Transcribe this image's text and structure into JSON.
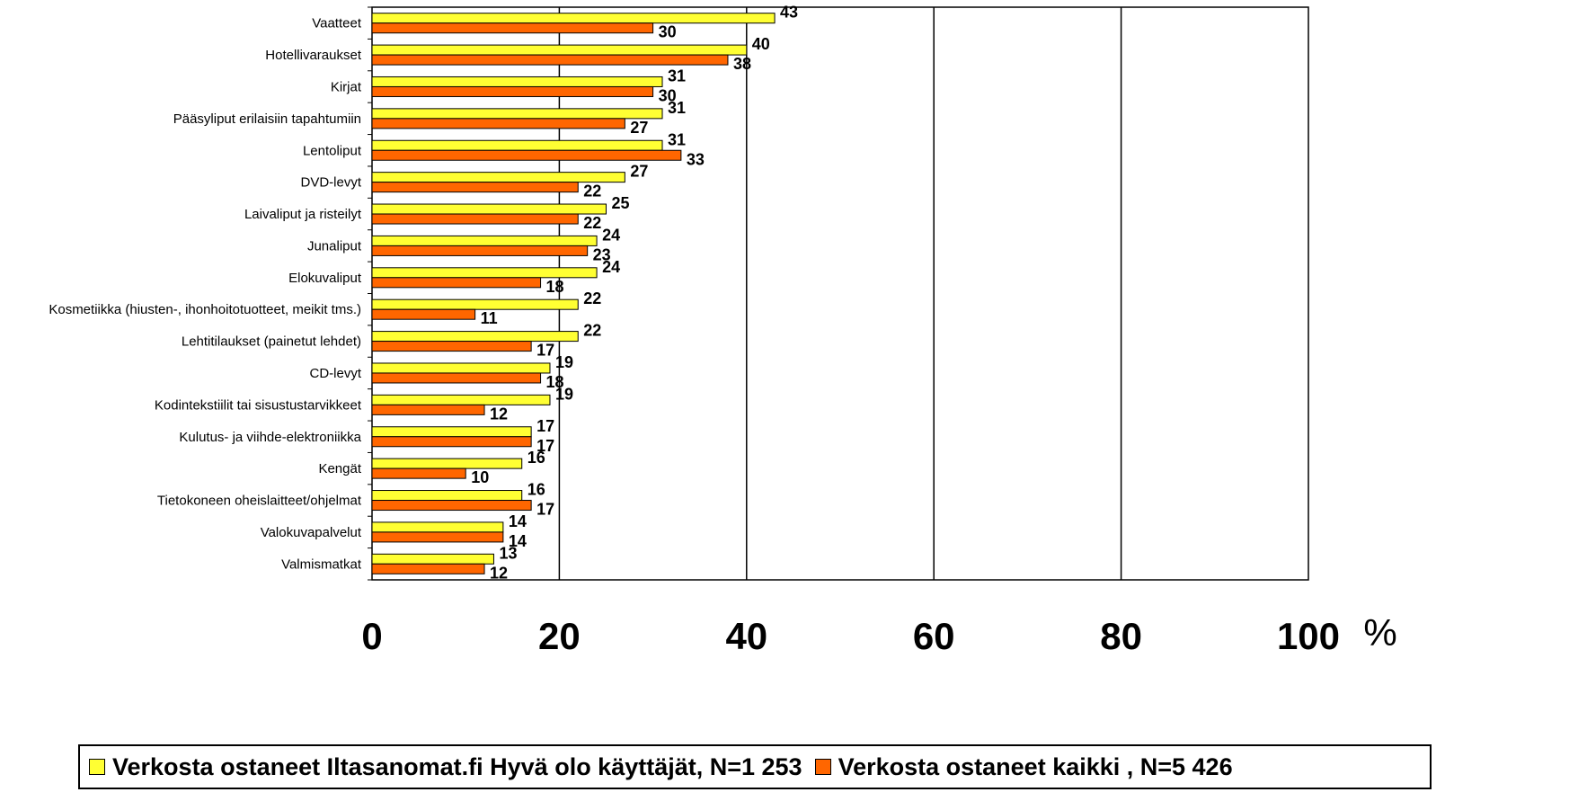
{
  "chart_data": {
    "type": "bar",
    "orientation": "horizontal",
    "categories": [
      "Vaatteet",
      "Hotellivaraukset",
      "Kirjat",
      "Pääsyliput erilaisiin tapahtumiin",
      "Lentoliput",
      "DVD-levyt",
      "Laivaliput ja risteilyt",
      "Junaliput",
      "Elokuvaliput",
      "Kosmetiikka (hiusten-, ihonhoitotuotteet, meikit tms.)",
      "Lehtitilaukset (painetut lehdet)",
      "CD-levyt",
      "Kodintekstiilit tai sisustustarvikkeet",
      "Kulutus- ja viihde-elektroniikka",
      "Kengät",
      "Tietokoneen oheislaitteet/ohjelmat",
      "Valokuvapalvelut",
      "Valmismatkat"
    ],
    "series": [
      {
        "name": "Verkosta ostaneet Iltasanomat.fi Hyvä olo käyttäjät, N=1 253",
        "color": "#FFFF33",
        "values": [
          43,
          40,
          31,
          31,
          31,
          27,
          25,
          24,
          24,
          22,
          22,
          19,
          19,
          17,
          16,
          16,
          14,
          13
        ]
      },
      {
        "name": "Verkosta ostaneet kaikki , N=5 426",
        "color": "#FF6600",
        "values": [
          30,
          38,
          30,
          27,
          33,
          22,
          22,
          23,
          18,
          11,
          17,
          18,
          12,
          17,
          10,
          17,
          14,
          12
        ]
      }
    ],
    "xlim": [
      0,
      100
    ],
    "xticks": [
      "0",
      "20",
      "40",
      "60",
      "80",
      "100"
    ],
    "unit": "%",
    "grid": "vertical",
    "legend": "bottom"
  }
}
